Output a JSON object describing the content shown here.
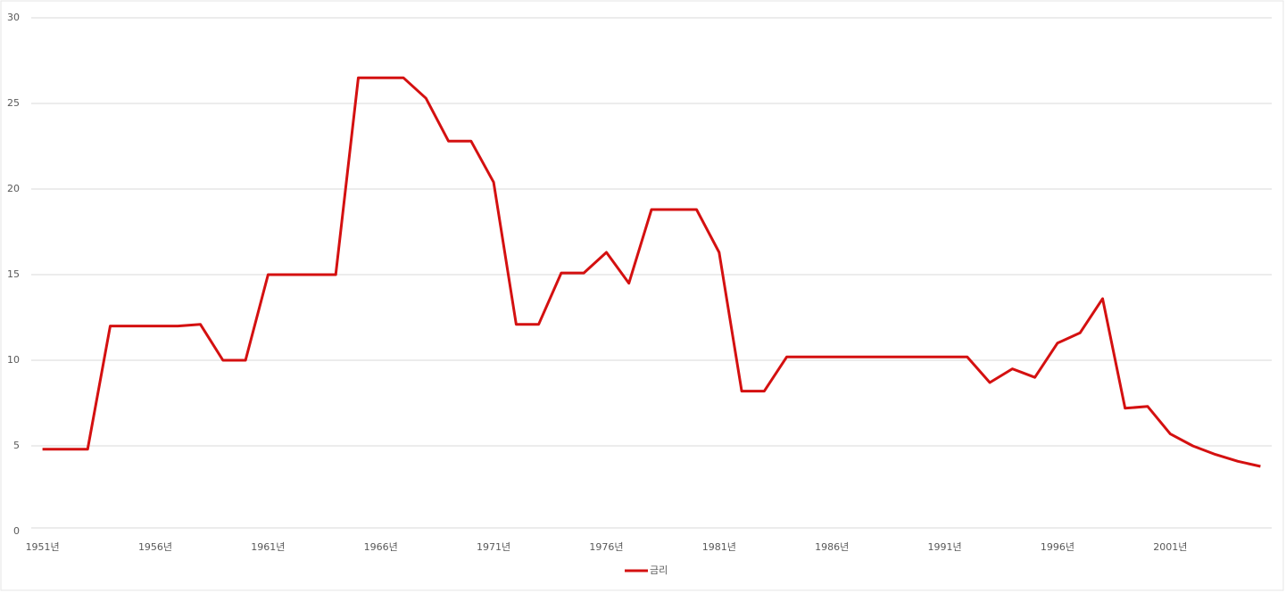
{
  "chart_data": {
    "type": "line",
    "categories": [
      "1951년",
      null,
      null,
      null,
      null,
      "1956년",
      null,
      null,
      null,
      null,
      "1961년",
      null,
      null,
      null,
      null,
      "1966년",
      null,
      null,
      null,
      null,
      "1971년",
      null,
      null,
      null,
      null,
      "1976년",
      null,
      null,
      null,
      null,
      "1981년",
      null,
      null,
      null,
      null,
      "1986년",
      null,
      null,
      null,
      null,
      "1991년",
      null,
      null,
      null,
      null,
      "1996년",
      null,
      null,
      null,
      null,
      "2001년",
      null,
      null,
      null,
      null
    ],
    "series": [
      {
        "name": "금리",
        "color": "#d41010",
        "values": [
          4.8,
          4.8,
          4.8,
          12,
          12,
          12,
          12,
          12.1,
          10,
          10,
          15,
          15,
          15,
          15,
          26.5,
          26.5,
          26.5,
          25.3,
          22.8,
          22.8,
          20.4,
          12.1,
          12.1,
          15.1,
          15.1,
          16.3,
          14.5,
          18.8,
          18.8,
          18.8,
          16.3,
          8.2,
          8.2,
          10.2,
          10.2,
          10.2,
          10.2,
          10.2,
          10.2,
          10.2,
          10.2,
          10.2,
          8.7,
          9.5,
          9,
          11,
          11.6,
          13.6,
          7.2,
          7.3,
          5.7,
          5,
          4.5,
          4.1,
          3.8
        ]
      }
    ],
    "ylim": [
      0,
      30
    ],
    "yticks": [
      0,
      5,
      10,
      15,
      20,
      25,
      30
    ],
    "grid": true,
    "legend": "bottom"
  }
}
